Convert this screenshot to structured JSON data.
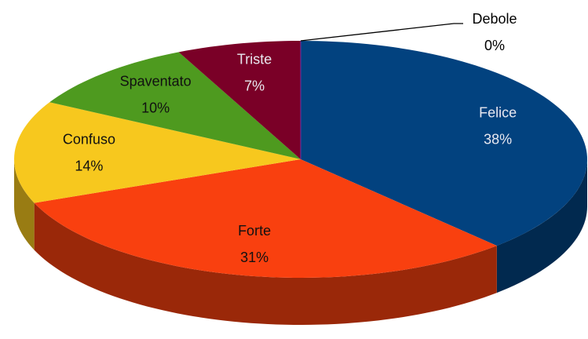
{
  "chart_data": {
    "type": "pie3d",
    "categories": [
      "Felice",
      "Forte",
      "Confuso",
      "Spaventato",
      "Triste",
      "Debole"
    ],
    "values": [
      38,
      31,
      14,
      10,
      7,
      0
    ],
    "value_labels": [
      "38%",
      "31%",
      "14%",
      "10%",
      "7%",
      "0%"
    ],
    "colors": [
      "#02427f",
      "#f9400f",
      "#f7c81e",
      "#4e9a1f",
      "#7a0027",
      "#7030a0"
    ]
  }
}
